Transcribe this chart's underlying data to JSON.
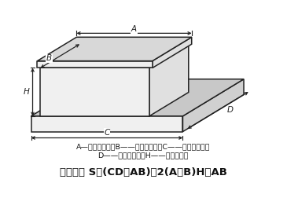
{
  "background_color": "#ffffff",
  "legend_text1": "A—变压器宽度；B——变压器长度；C——集油坑宽度；",
  "legend_text2": "D——集油坑长度；H——变压器高度",
  "formula_text": "保护面积 S＝(CD－AB)＋2(A＋B)H＋AB",
  "line_color": "#222222",
  "text_color": "#111111",
  "fill_front": "#f0f0f0",
  "fill_top": "#d8d8d8",
  "fill_right": "#e0e0e0",
  "fill_base_top": "#c8c8c8",
  "fill_base_right": "#d0d0d0"
}
